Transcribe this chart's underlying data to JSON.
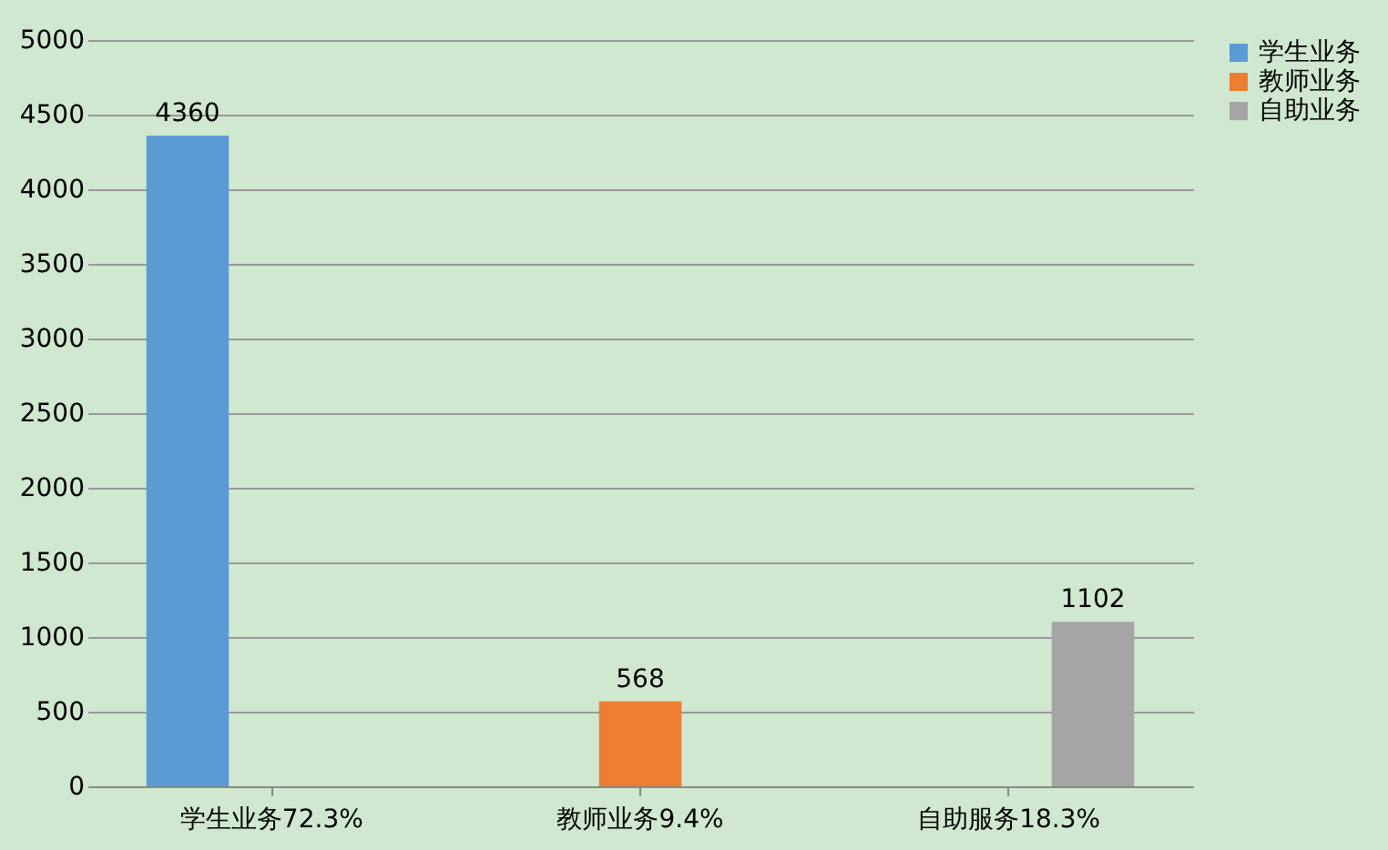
{
  "chart_data": {
    "type": "bar",
    "categories": [
      "学生业务72.3%",
      "教师业务9.4%",
      "自助服务18.3%"
    ],
    "series": [
      {
        "name": "学生业务",
        "color": "#5b9bd5",
        "values": [
          4360,
          null,
          null
        ]
      },
      {
        "name": "教师业务",
        "color": "#ed7d31",
        "values": [
          null,
          568,
          null
        ]
      },
      {
        "name": "自助业务",
        "color": "#a5a5a5",
        "values": [
          null,
          null,
          1102
        ]
      }
    ],
    "ylim": [
      0,
      5000
    ],
    "yticks": [
      0,
      500,
      1000,
      1500,
      2000,
      2500,
      3000,
      3500,
      4000,
      4500,
      5000
    ],
    "grid": "y",
    "legend": "right",
    "data_labels": true
  }
}
